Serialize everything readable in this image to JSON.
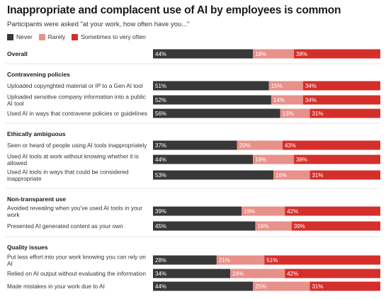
{
  "chart_data": {
    "type": "bar",
    "orientation": "horizontal",
    "stacked": true,
    "title": "Inappropriate and complacent use of AI by employees is common",
    "subtitle": "Participants were asked \"at your work, how often have you...\"",
    "series_names": [
      "Never",
      "Rarely",
      "Sometimes to very often"
    ],
    "colors": {
      "Never": "#383838",
      "Rarely": "#e8908a",
      "Sometimes to very often": "#d42f2b"
    },
    "legend_placement": "top-left",
    "grid": false,
    "groups": [
      {
        "name": "Overall",
        "rows": [
          {
            "label": [
              "Overall"
            ],
            "values": [
              44,
              18,
              38
            ],
            "labels": [
              "44%",
              "18%",
              "38%"
            ],
            "bold": true
          }
        ]
      },
      {
        "name": "Contravening policies",
        "rows": [
          {
            "label": [
              "Uploaded copyrighted material or IP to a Gen AI tool"
            ],
            "values": [
              51,
              15,
              34
            ],
            "labels": [
              "51%",
              "15%",
              "34%"
            ]
          },
          {
            "label": [
              "Uploaded sensitive company information into a public",
              "AI tool"
            ],
            "values": [
              52,
              14,
              34
            ],
            "labels": [
              "52%",
              "14%",
              "34%"
            ]
          },
          {
            "label": [
              "Used AI in ways that contravene policies or guidelines"
            ],
            "values": [
              56,
              13,
              31
            ],
            "labels": [
              "56%",
              "13%",
              "31%"
            ]
          }
        ]
      },
      {
        "name": "Ethically ambiguous",
        "rows": [
          {
            "label": [
              "Seen or heard of people using AI tools inappropriately"
            ],
            "values": [
              37,
              20,
              43
            ],
            "labels": [
              "37%",
              "20%",
              "43%"
            ]
          },
          {
            "label": [
              "Used AI tools at work without knowing whether it is",
              "allowed"
            ],
            "values": [
              44,
              18,
              38
            ],
            "labels": [
              "44%",
              "18%",
              "38%"
            ]
          },
          {
            "label": [
              "Used AI tools in ways that could be considered",
              "inappropriate"
            ],
            "values": [
              53,
              16,
              31
            ],
            "labels": [
              "53%",
              "16%",
              "31%"
            ]
          }
        ]
      },
      {
        "name": "Non-transparent use",
        "rows": [
          {
            "label": [
              "Avoided revealing when you've used AI tools in your",
              "work"
            ],
            "values": [
              39,
              19,
              42
            ],
            "labels": [
              "39%",
              "19%",
              "42%"
            ]
          },
          {
            "label": [
              "Presented AI generated content as your own"
            ],
            "values": [
              45,
              16,
              39
            ],
            "labels": [
              "45%",
              "16%",
              "39%"
            ]
          }
        ]
      },
      {
        "name": "Quality issues",
        "rows": [
          {
            "label": [
              "Put less effort into your work knowing you can rely on",
              "AI"
            ],
            "values": [
              28,
              21,
              51
            ],
            "labels": [
              "28%",
              "21%",
              "51%"
            ]
          },
          {
            "label": [
              "Relied on AI output without evaluating the information"
            ],
            "values": [
              34,
              24,
              42
            ],
            "labels": [
              "34%",
              "24%",
              "42%"
            ]
          },
          {
            "label": [
              "Made mistakes in your work due to AI"
            ],
            "values": [
              44,
              25,
              31
            ],
            "labels": [
              "44%",
              "25%",
              "31%"
            ]
          }
        ]
      }
    ]
  }
}
